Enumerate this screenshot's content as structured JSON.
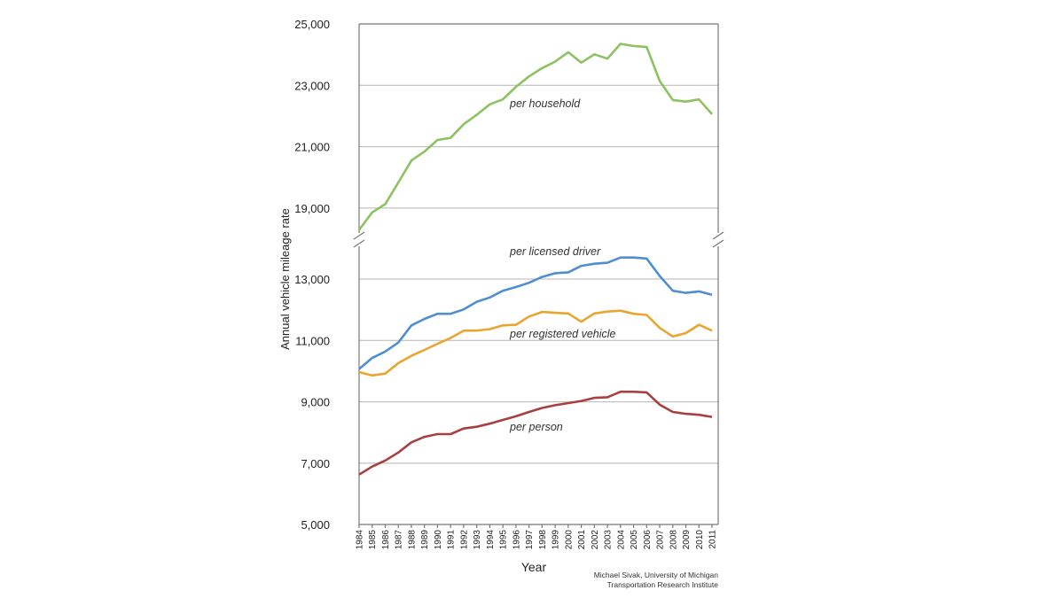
{
  "chart_data": {
    "type": "line",
    "title": "",
    "xlabel": "Year",
    "ylabel": "Annual vehicle mileage rate",
    "credit": [
      "Michael Sivak, University of Michigan",
      "Transportation Research Institute"
    ],
    "axis_break": true,
    "upper_yticks": [
      "25,000",
      "23,000",
      "21,000",
      "19,000"
    ],
    "upper_ytick_values": [
      25000,
      23000,
      21000,
      19000
    ],
    "lower_yticks": [
      "13,000",
      "11,000",
      "9,000",
      "7,000",
      "5,000"
    ],
    "lower_ytick_values": [
      13000,
      11000,
      9000,
      7000,
      5000
    ],
    "grid": true,
    "x": [
      1984,
      1985,
      1986,
      1987,
      1988,
      1989,
      1990,
      1991,
      1992,
      1993,
      1994,
      1995,
      1996,
      1997,
      1998,
      1999,
      2000,
      2001,
      2002,
      2003,
      2004,
      2005,
      2006,
      2007,
      2008,
      2009,
      2010,
      2011
    ],
    "series": [
      {
        "name": "per household",
        "panel": "upper",
        "color": "#8dc262",
        "values": [
          18290,
          18860,
          19130,
          19830,
          20550,
          20840,
          21220,
          21290,
          21730,
          22040,
          22380,
          22540,
          22950,
          23290,
          23560,
          23770,
          24080,
          23740,
          24010,
          23870,
          24350,
          24280,
          24250,
          23140,
          22520,
          22470,
          22540,
          22060
        ]
      },
      {
        "name": "per licensed driver",
        "panel": "lower",
        "color": "#4f8fcf",
        "values": [
          10070,
          10430,
          10640,
          10930,
          11490,
          11700,
          11870,
          11870,
          12010,
          12260,
          12400,
          12620,
          12740,
          12880,
          13070,
          13190,
          13220,
          13430,
          13500,
          13530,
          13700,
          13700,
          13670,
          13100,
          12620,
          12550,
          12600,
          12490
        ]
      },
      {
        "name": "per registered vehicle",
        "panel": "lower",
        "color": "#e9a531",
        "values": [
          9970,
          9860,
          9920,
          10260,
          10500,
          10690,
          10890,
          11080,
          11320,
          11320,
          11370,
          11490,
          11510,
          11780,
          11930,
          11900,
          11880,
          11610,
          11880,
          11940,
          11970,
          11870,
          11830,
          11410,
          11130,
          11240,
          11510,
          11320
        ]
      },
      {
        "name": "per person",
        "panel": "lower",
        "color": "#a8403f",
        "values": [
          6630,
          6890,
          7090,
          7350,
          7680,
          7860,
          7950,
          7950,
          8130,
          8190,
          8290,
          8410,
          8530,
          8670,
          8800,
          8890,
          8960,
          9030,
          9130,
          9150,
          9330,
          9330,
          9310,
          8910,
          8670,
          8610,
          8580,
          8510
        ]
      }
    ]
  }
}
